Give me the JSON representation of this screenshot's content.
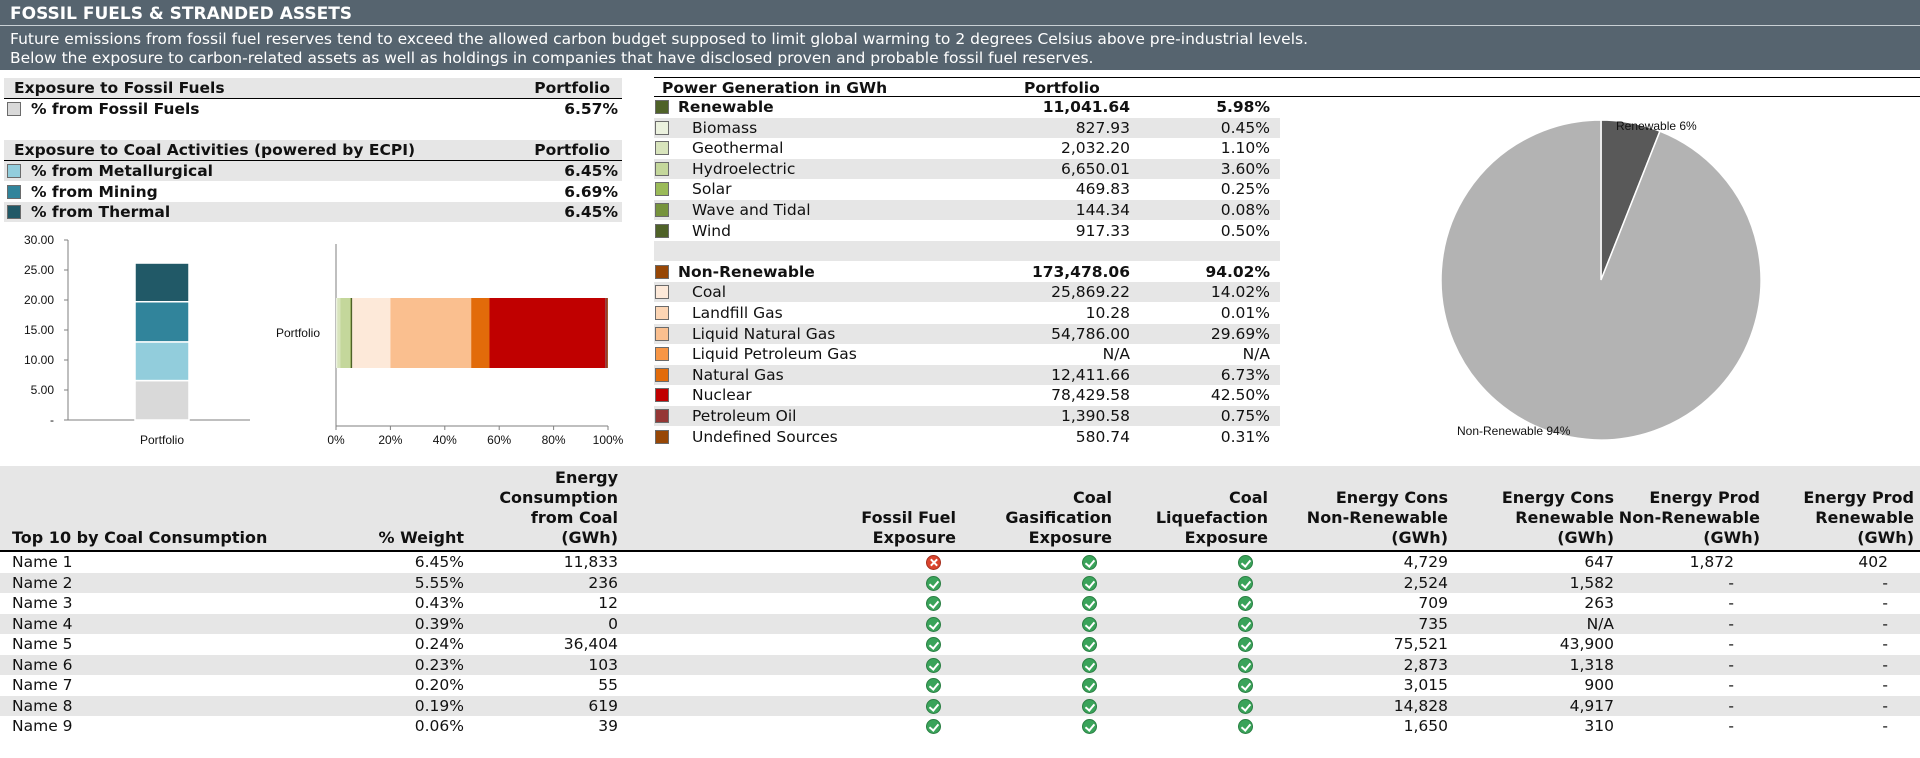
{
  "header": {
    "title": "FOSSIL FUELS & STRANDED ASSETS",
    "desc1": "Future emissions from fossil fuel reserves tend to exceed the allowed carbon budget supposed to limit global warming to 2 degrees Celsius above pre-industrial levels.",
    "desc2": "Below the exposure to carbon-related assets as well as holdings in companies that have disclosed proven and probable fossil fuel reserves."
  },
  "fossil": {
    "title": "Exposure to Fossil Fuels",
    "col": "Portfolio",
    "items": [
      {
        "label": "% from Fossil Fuels",
        "value": "6.57%",
        "color": "#d9d9d9"
      }
    ]
  },
  "coal": {
    "title": "Exposure to Coal Activities (powered by ECPI)",
    "col": "Portfolio",
    "items": [
      {
        "label": "% from Metallurgical",
        "value": "6.45%",
        "color": "#92cddc"
      },
      {
        "label": "% from Mining",
        "value": "6.69%",
        "color": "#31849b"
      },
      {
        "label": "% from Thermal",
        "value": "6.45%",
        "color": "#215967"
      }
    ]
  },
  "power": {
    "title": "Power Generation in GWh",
    "col": "Portfolio",
    "renewable": {
      "label": "Renewable",
      "value": "11,041.64",
      "pct": "5.98%",
      "color": "#4f6228"
    },
    "renewable_items": [
      {
        "label": "Biomass",
        "value": "827.93",
        "pct": "0.45%",
        "color": "#ebf1de"
      },
      {
        "label": "Geothermal",
        "value": "2,032.20",
        "pct": "1.10%",
        "color": "#d8e4bc"
      },
      {
        "label": "Hydroelectric",
        "value": "6,650.01",
        "pct": "3.60%",
        "color": "#c4d79b"
      },
      {
        "label": "Solar",
        "value": "469.83",
        "pct": "0.25%",
        "color": "#9bbb59"
      },
      {
        "label": "Wave and Tidal",
        "value": "144.34",
        "pct": "0.08%",
        "color": "#76933c"
      },
      {
        "label": "Wind",
        "value": "917.33",
        "pct": "0.50%",
        "color": "#4f6228"
      }
    ],
    "nonrenewable": {
      "label": "Non-Renewable",
      "value": "173,478.06",
      "pct": "94.02%",
      "color": "#974706"
    },
    "nonrenewable_items": [
      {
        "label": "Coal",
        "value": "25,869.22",
        "pct": "14.02%",
        "color": "#fde9d9"
      },
      {
        "label": "Landfill Gas",
        "value": "10.28",
        "pct": "0.01%",
        "color": "#fcd5b4"
      },
      {
        "label": "Liquid Natural Gas",
        "value": "54,786.00",
        "pct": "29.69%",
        "color": "#fabf8f"
      },
      {
        "label": "Liquid Petroleum Gas",
        "value": "N/A",
        "pct": "N/A",
        "color": "#f79646"
      },
      {
        "label": "Natural Gas",
        "value": "12,411.66",
        "pct": "6.73%",
        "color": "#e26b0a"
      },
      {
        "label": "Nuclear",
        "value": "78,429.58",
        "pct": "42.50%",
        "color": "#c00000"
      },
      {
        "label": "Petroleum Oil",
        "value": "1,390.58",
        "pct": "0.75%",
        "color": "#953735"
      },
      {
        "label": "Undefined Sources",
        "value": "580.74",
        "pct": "0.31%",
        "color": "#974706"
      }
    ]
  },
  "chart_data": [
    {
      "type": "bar",
      "stacked": true,
      "categories": [
        "Portfolio"
      ],
      "series": [
        {
          "values": [
            6.57
          ],
          "color": "#d9d9d9"
        },
        {
          "values": [
            6.45
          ],
          "color": "#92cddc"
        },
        {
          "values": [
            6.69
          ],
          "color": "#31849b"
        },
        {
          "values": [
            6.45
          ],
          "color": "#215967"
        }
      ],
      "ylim": [
        0,
        30
      ],
      "yticks": [
        "-",
        "5.00",
        "10.00",
        "15.00",
        "20.00",
        "25.00",
        "30.00"
      ],
      "xticklabels": [
        "Portfolio"
      ]
    },
    {
      "type": "bar",
      "orientation": "horizontal",
      "stacked": true,
      "categories": [
        "Portfolio"
      ],
      "series": [
        {
          "values": [
            0.45
          ],
          "color": "#ebf1de"
        },
        {
          "values": [
            1.1
          ],
          "color": "#d8e4bc"
        },
        {
          "values": [
            3.6
          ],
          "color": "#c4d79b"
        },
        {
          "values": [
            0.25
          ],
          "color": "#9bbb59"
        },
        {
          "values": [
            0.08
          ],
          "color": "#76933c"
        },
        {
          "values": [
            0.5
          ],
          "color": "#4f6228"
        },
        {
          "values": [
            14.02
          ],
          "color": "#fde9d9"
        },
        {
          "values": [
            0.01
          ],
          "color": "#fcd5b4"
        },
        {
          "values": [
            29.69
          ],
          "color": "#fabf8f"
        },
        {
          "values": [
            6.73
          ],
          "color": "#e26b0a"
        },
        {
          "values": [
            42.5
          ],
          "color": "#c00000"
        },
        {
          "values": [
            0.75
          ],
          "color": "#953735"
        },
        {
          "values": [
            0.31
          ],
          "color": "#974706"
        }
      ],
      "xlim": [
        0,
        100
      ],
      "xticks": [
        "0%",
        "20%",
        "40%",
        "60%",
        "80%",
        "100%"
      ],
      "yticklabels": [
        "Portfolio"
      ]
    },
    {
      "type": "pie",
      "labels": [
        "Renewable 6%",
        "Non-Renewable 94%"
      ],
      "values": [
        6,
        94
      ],
      "colors": [
        "#595959",
        "#b3b3b3"
      ]
    }
  ],
  "table": {
    "headers": [
      "Top 10 by Coal Consumption",
      "% Weight",
      "Energy\nConsumption\nfrom Coal\n(GWh)",
      "Fossil Fuel\nExposure",
      "Coal\nGasification\nExposure",
      "Coal\nLiquefaction\nExposure",
      "Energy Cons\nNon-Renewable\n(GWh)",
      "Energy Cons\nRenewable\n(GWh)",
      "Energy Prod\nNon-Renewable\n(GWh)",
      "Energy Prod\nRenewable\n(GWh)"
    ],
    "rows": [
      {
        "name": "Name 1",
        "weight": "6.45%",
        "coal": "11,833",
        "ff": "bad",
        "gas": "ok",
        "liq": "ok",
        "cnr": "4,729",
        "cr": "647",
        "pnr": "1,872",
        "pr": "402"
      },
      {
        "name": "Name 2",
        "weight": "5.55%",
        "coal": "236",
        "ff": "ok",
        "gas": "ok",
        "liq": "ok",
        "cnr": "2,524",
        "cr": "1,582",
        "pnr": "-",
        "pr": "-"
      },
      {
        "name": "Name 3",
        "weight": "0.43%",
        "coal": "12",
        "ff": "ok",
        "gas": "ok",
        "liq": "ok",
        "cnr": "709",
        "cr": "263",
        "pnr": "-",
        "pr": "-"
      },
      {
        "name": "Name 4",
        "weight": "0.39%",
        "coal": "0",
        "ff": "ok",
        "gas": "ok",
        "liq": "ok",
        "cnr": "735",
        "cr": "N/A",
        "pnr": "-",
        "pr": "-"
      },
      {
        "name": "Name 5",
        "weight": "0.24%",
        "coal": "36,404",
        "ff": "ok",
        "gas": "ok",
        "liq": "ok",
        "cnr": "75,521",
        "cr": "43,900",
        "pnr": "-",
        "pr": "-"
      },
      {
        "name": "Name 6",
        "weight": "0.23%",
        "coal": "103",
        "ff": "ok",
        "gas": "ok",
        "liq": "ok",
        "cnr": "2,873",
        "cr": "1,318",
        "pnr": "-",
        "pr": "-"
      },
      {
        "name": "Name 7",
        "weight": "0.20%",
        "coal": "55",
        "ff": "ok",
        "gas": "ok",
        "liq": "ok",
        "cnr": "3,015",
        "cr": "900",
        "pnr": "-",
        "pr": "-"
      },
      {
        "name": "Name 8",
        "weight": "0.19%",
        "coal": "619",
        "ff": "ok",
        "gas": "ok",
        "liq": "ok",
        "cnr": "14,828",
        "cr": "4,917",
        "pnr": "-",
        "pr": "-"
      },
      {
        "name": "Name 9",
        "weight": "0.06%",
        "coal": "39",
        "ff": "ok",
        "gas": "ok",
        "liq": "ok",
        "cnr": "1,650",
        "cr": "310",
        "pnr": "-",
        "pr": "-"
      }
    ]
  }
}
